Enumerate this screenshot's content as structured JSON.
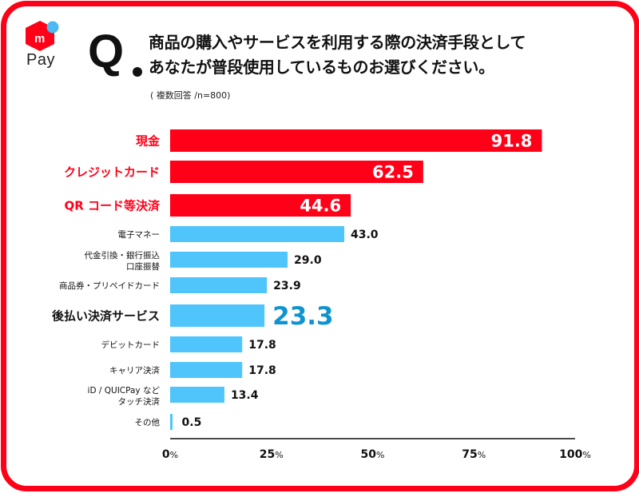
{
  "brand": {
    "name": "Pay",
    "colors": {
      "red": "#ff0018",
      "blue": "#4fc5fb",
      "dot": "#4fb8f0"
    }
  },
  "question": {
    "mark": "Q",
    "lines": [
      "商品の購入やサービスを利用する際の決済手段として",
      "あなたが普段使用しているものお選びください。"
    ],
    "note": "( 複数回答 /n=800)"
  },
  "chart_data": {
    "type": "bar",
    "orientation": "horizontal",
    "title": "商品の購入やサービスを利用する際の決済手段としてあなたが普段使用しているものお選びください。",
    "xlabel": "",
    "ylabel": "",
    "xlim": [
      0,
      100
    ],
    "xticks": [
      {
        "value": 0,
        "num": "0",
        "unit": "%"
      },
      {
        "value": 25,
        "num": "25",
        "unit": "%"
      },
      {
        "value": 50,
        "num": "50",
        "unit": "%"
      },
      {
        "value": 75,
        "num": "75",
        "unit": "%"
      },
      {
        "value": 100,
        "num": "100",
        "unit": "%"
      }
    ],
    "grid": false,
    "categories": [
      [
        "現金"
      ],
      [
        "クレジットカード"
      ],
      [
        "QR コード等決済"
      ],
      [
        "電子マネー"
      ],
      [
        "代金引換・銀行振込",
        "口座振替"
      ],
      [
        "商品券・プリペイドカード"
      ],
      [
        "後払い決済サービス"
      ],
      [
        "デビットカード"
      ],
      [
        "キャリア決済"
      ],
      [
        "iD / QUICPay など",
        "タッチ決済"
      ],
      [
        "その他"
      ]
    ],
    "values": [
      91.8,
      62.5,
      44.6,
      43.0,
      29.0,
      23.9,
      23.3,
      17.8,
      17.8,
      13.4,
      0.5
    ],
    "value_labels": [
      "91.8",
      "62.5",
      "44.6",
      "43.0",
      "29.0",
      "23.9",
      "23.3",
      "17.8",
      "17.8",
      "13.4",
      "0.5"
    ],
    "styles": [
      "top",
      "top",
      "top",
      "normal",
      "normal",
      "normal",
      "highlight",
      "normal",
      "normal",
      "normal",
      "normal"
    ],
    "colors": {
      "top_bar": "#ff0018",
      "top_label": "#ff0018",
      "bar": "#4fc5fb",
      "highlight_value": "#0f94cf",
      "text": "#111111",
      "axis": "#111111"
    }
  }
}
